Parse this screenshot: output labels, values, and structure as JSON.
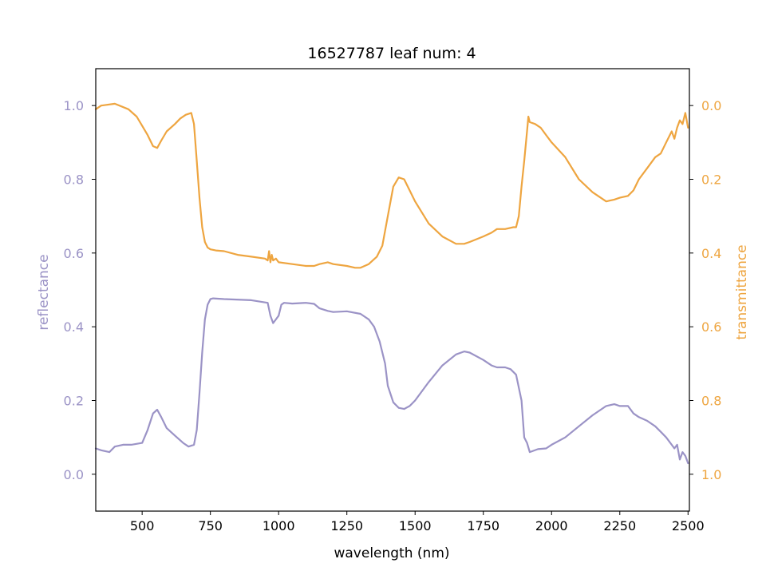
{
  "chart_data": {
    "type": "line",
    "title": "16527787 leaf num: 4",
    "xlabel": "wavelength (nm)",
    "ylabel_left": "reflectance",
    "ylabel_right": "transmittance",
    "xlim": [
      330,
      2505
    ],
    "ylim_left": [
      -0.1,
      1.1
    ],
    "ylim_right": [
      1.1,
      -0.1
    ],
    "right_axis_inverted": true,
    "x_ticks": [
      500,
      750,
      1000,
      1250,
      1500,
      1750,
      2000,
      2250,
      2500
    ],
    "y_left_ticks": [
      0.0,
      0.2,
      0.4,
      0.6,
      0.8,
      1.0
    ],
    "y_right_ticks": [
      0.0,
      0.2,
      0.4,
      0.6,
      0.8,
      1.0
    ],
    "grid": false,
    "colors": {
      "reflectance": "#9b93c6",
      "transmittance": "#eea540"
    },
    "series": [
      {
        "name": "reflectance",
        "axis": "left",
        "x": [
          330,
          350,
          380,
          400,
          430,
          460,
          500,
          520,
          540,
          555,
          570,
          590,
          620,
          650,
          670,
          690,
          700,
          710,
          720,
          730,
          740,
          750,
          760,
          800,
          900,
          960,
          970,
          980,
          1000,
          1010,
          1020,
          1050,
          1100,
          1130,
          1150,
          1180,
          1200,
          1250,
          1300,
          1330,
          1350,
          1370,
          1390,
          1400,
          1420,
          1440,
          1460,
          1480,
          1500,
          1550,
          1600,
          1650,
          1680,
          1700,
          1750,
          1780,
          1800,
          1830,
          1850,
          1870,
          1890,
          1900,
          1910,
          1920,
          1950,
          1980,
          2000,
          2050,
          2100,
          2150,
          2200,
          2230,
          2250,
          2280,
          2300,
          2320,
          2350,
          2380,
          2400,
          2420,
          2440,
          2450,
          2460,
          2470,
          2480,
          2490,
          2500
        ],
        "values": [
          0.07,
          0.065,
          0.06,
          0.075,
          0.08,
          0.08,
          0.085,
          0.12,
          0.165,
          0.175,
          0.155,
          0.125,
          0.105,
          0.085,
          0.075,
          0.08,
          0.12,
          0.22,
          0.33,
          0.42,
          0.46,
          0.475,
          0.477,
          0.475,
          0.472,
          0.465,
          0.43,
          0.41,
          0.43,
          0.46,
          0.465,
          0.463,
          0.465,
          0.462,
          0.45,
          0.443,
          0.44,
          0.442,
          0.435,
          0.42,
          0.4,
          0.36,
          0.3,
          0.24,
          0.195,
          0.18,
          0.177,
          0.185,
          0.2,
          0.25,
          0.295,
          0.325,
          0.333,
          0.33,
          0.31,
          0.295,
          0.29,
          0.29,
          0.285,
          0.27,
          0.2,
          0.1,
          0.085,
          0.06,
          0.068,
          0.07,
          0.08,
          0.1,
          0.13,
          0.16,
          0.185,
          0.19,
          0.185,
          0.185,
          0.165,
          0.155,
          0.145,
          0.13,
          0.115,
          0.1,
          0.08,
          0.07,
          0.08,
          0.04,
          0.06,
          0.05,
          0.03
        ]
      },
      {
        "name": "transmittance",
        "axis": "right",
        "x": [
          330,
          350,
          400,
          450,
          480,
          500,
          520,
          540,
          555,
          570,
          590,
          620,
          640,
          660,
          680,
          690,
          700,
          710,
          720,
          730,
          740,
          750,
          770,
          800,
          850,
          900,
          950,
          960,
          965,
          970,
          975,
          980,
          990,
          1000,
          1050,
          1100,
          1130,
          1150,
          1180,
          1200,
          1250,
          1280,
          1300,
          1330,
          1360,
          1380,
          1400,
          1420,
          1440,
          1460,
          1480,
          1500,
          1550,
          1600,
          1650,
          1680,
          1700,
          1750,
          1780,
          1800,
          1830,
          1860,
          1870,
          1880,
          1890,
          1900,
          1910,
          1915,
          1920,
          1940,
          1960,
          1980,
          2000,
          2050,
          2100,
          2150,
          2200,
          2230,
          2250,
          2280,
          2300,
          2320,
          2350,
          2380,
          2400,
          2420,
          2440,
          2450,
          2460,
          2470,
          2480,
          2490,
          2500
        ],
        "values": [
          0.01,
          0.0,
          -0.005,
          0.01,
          0.03,
          0.055,
          0.08,
          0.11,
          0.115,
          0.095,
          0.07,
          0.05,
          0.035,
          0.025,
          0.02,
          0.05,
          0.15,
          0.25,
          0.33,
          0.37,
          0.385,
          0.39,
          0.393,
          0.395,
          0.405,
          0.41,
          0.415,
          0.42,
          0.395,
          0.425,
          0.405,
          0.42,
          0.415,
          0.425,
          0.43,
          0.435,
          0.435,
          0.43,
          0.425,
          0.43,
          0.435,
          0.44,
          0.44,
          0.43,
          0.41,
          0.38,
          0.3,
          0.22,
          0.195,
          0.2,
          0.23,
          0.26,
          0.32,
          0.355,
          0.375,
          0.375,
          0.37,
          0.355,
          0.345,
          0.335,
          0.335,
          0.33,
          0.33,
          0.3,
          0.22,
          0.15,
          0.07,
          0.03,
          0.045,
          0.05,
          0.06,
          0.08,
          0.1,
          0.14,
          0.2,
          0.235,
          0.26,
          0.255,
          0.25,
          0.245,
          0.23,
          0.2,
          0.17,
          0.14,
          0.13,
          0.1,
          0.07,
          0.09,
          0.06,
          0.04,
          0.05,
          0.02,
          0.06
        ]
      }
    ]
  }
}
